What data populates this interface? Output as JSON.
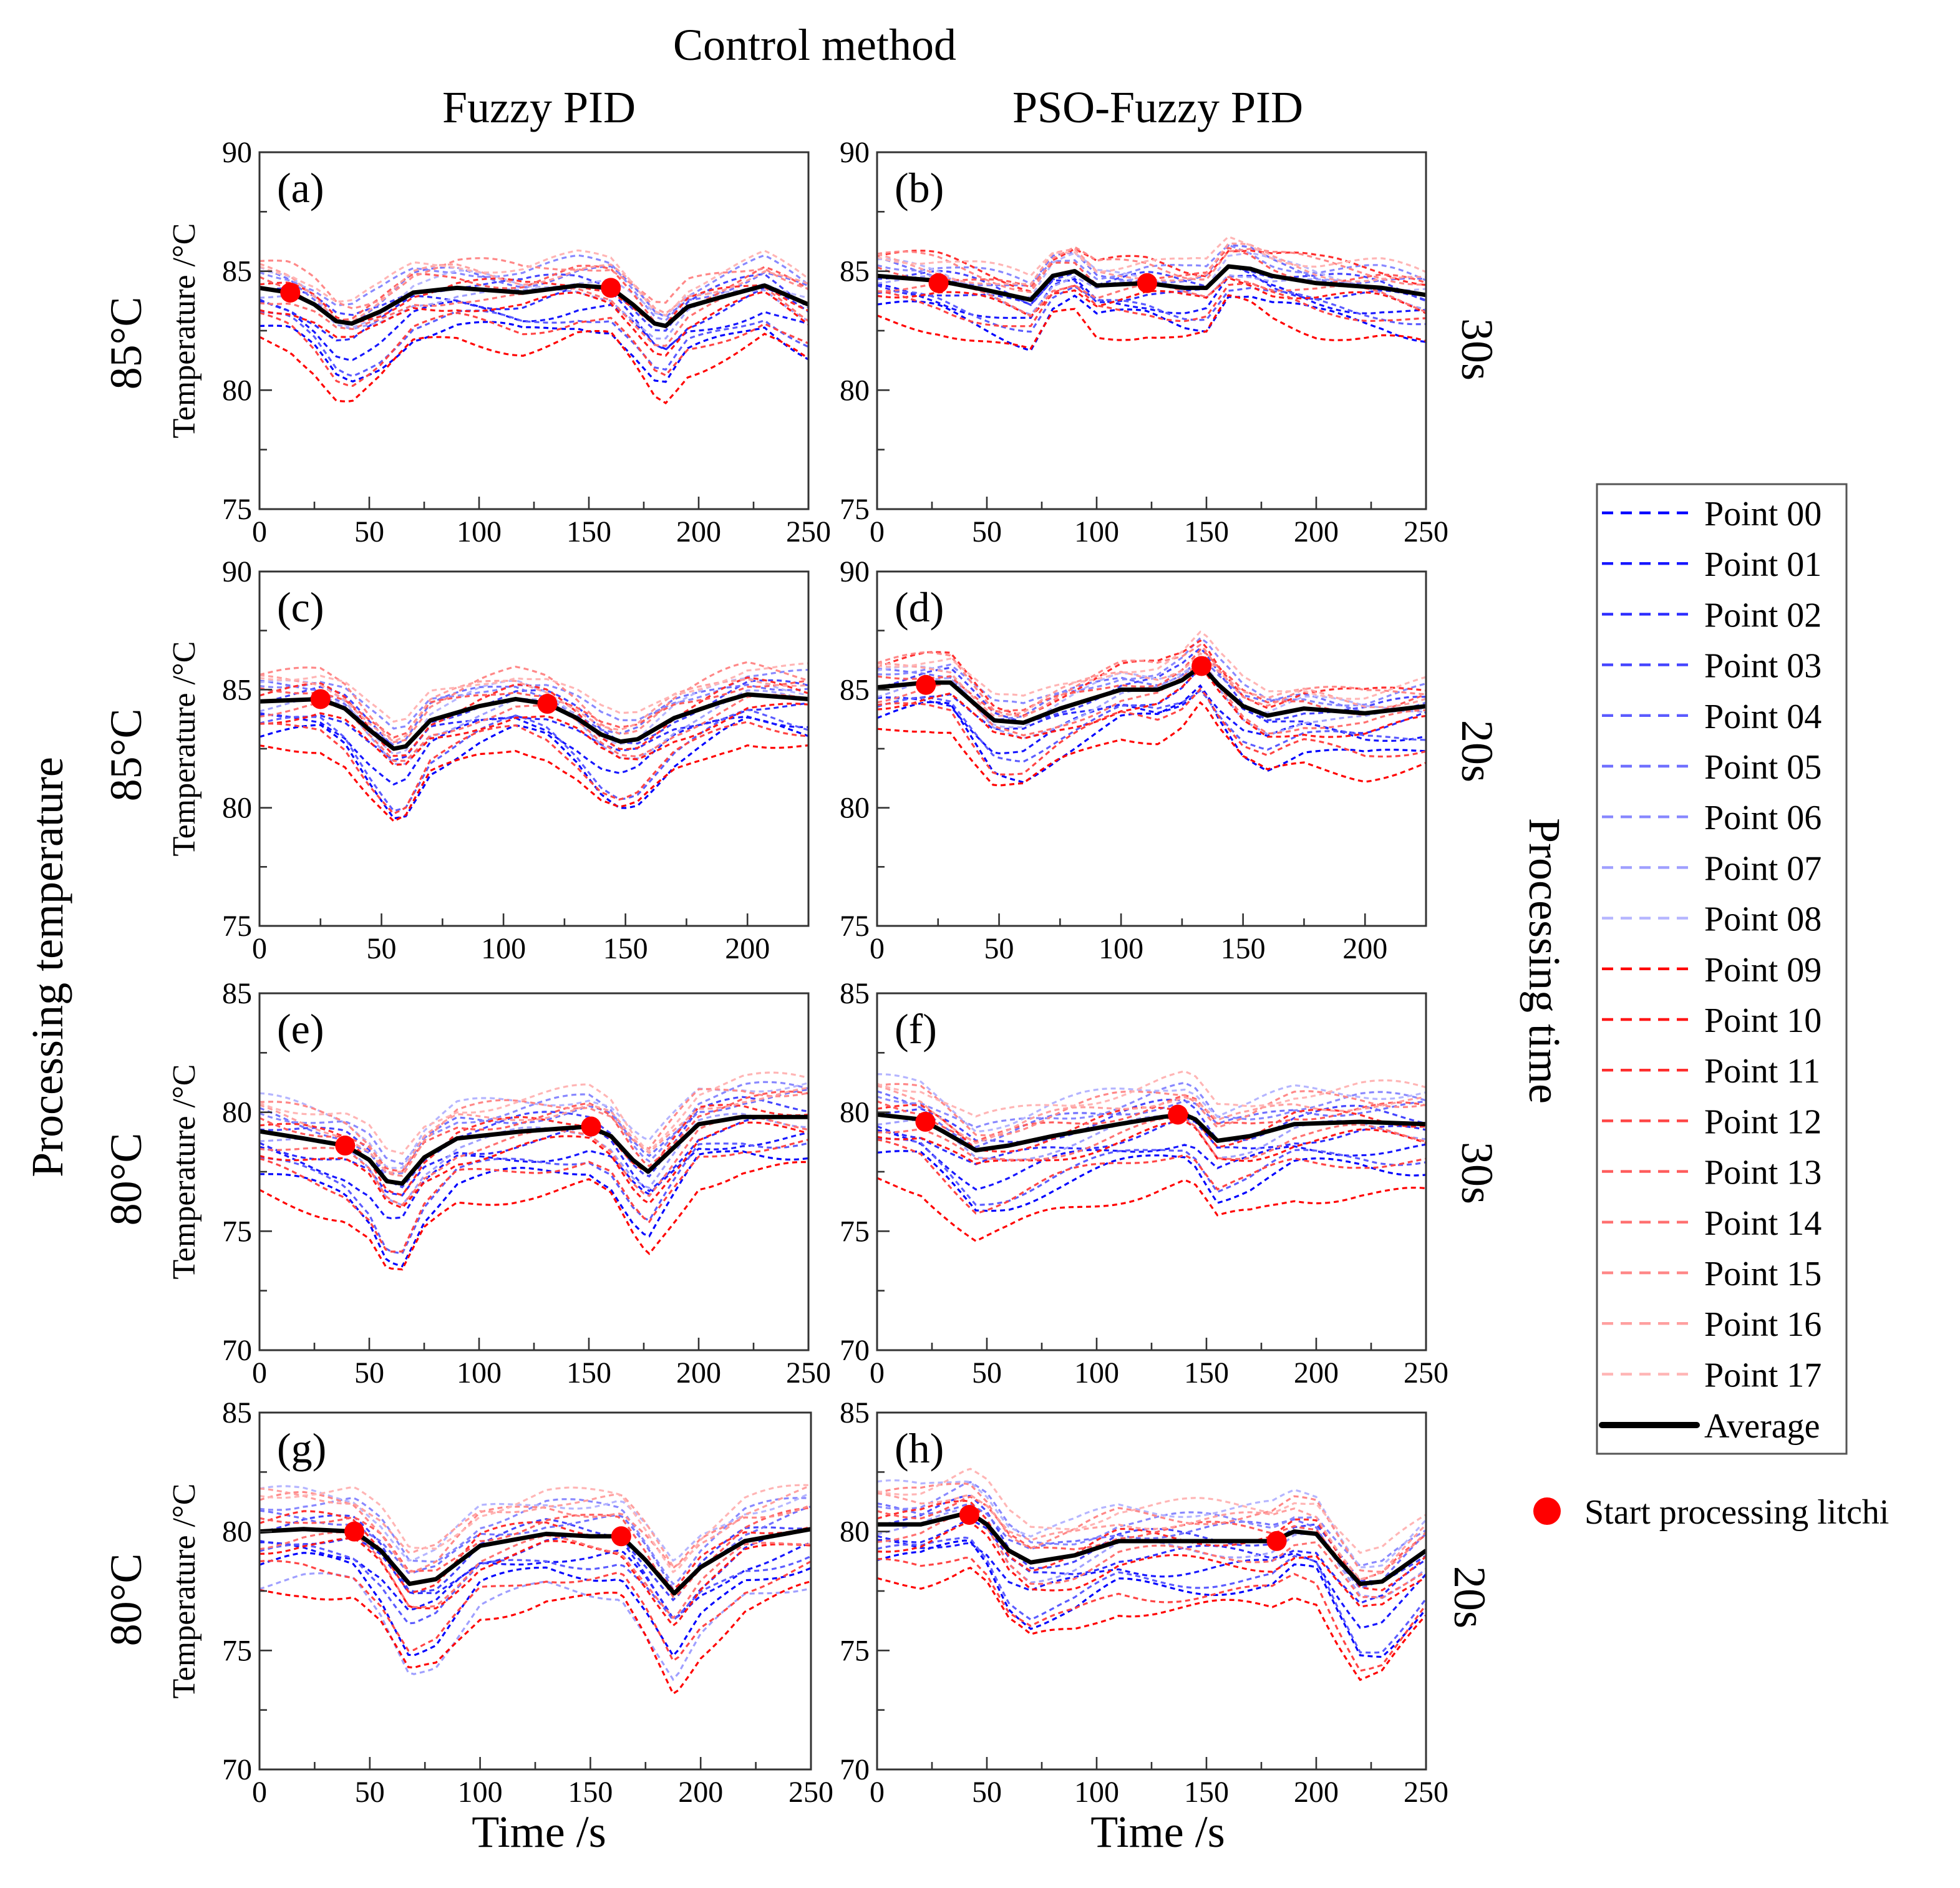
{
  "header": {
    "title": "Control method",
    "col_titles": [
      "Fuzzy PID",
      "PSO-Fuzzy PID"
    ]
  },
  "left_label": "Processing temperature",
  "right_label": "Processing time",
  "row_temperatures": [
    "85°C",
    "85°C",
    "80°C",
    "80°C"
  ],
  "row_times": [
    "30s",
    "20s",
    "30s",
    "20s"
  ],
  "xlabel": "Time /s",
  "ylabel": "Temperature /°C",
  "legend": {
    "points": [
      "Point 00",
      "Point 01",
      "Point 02",
      "Point 03",
      "Point 04",
      "Point 05",
      "Point 06",
      "Point 07",
      "Point 08",
      "Point 09",
      "Point 10",
      "Point 11",
      "Point 12",
      "Point 13",
      "Point 14",
      "Point 15",
      "Point 16",
      "Point 17"
    ],
    "average": "Average",
    "marker": "Start processing litchi"
  },
  "colors": {
    "blue": "#0000ff",
    "red": "#ff0000",
    "average": "#000000",
    "marker": "#ff0000"
  },
  "chart_data": [
    {
      "type": "line",
      "label": "(a)",
      "xlim": [
        0,
        250
      ],
      "ylim": [
        75,
        90
      ],
      "xticks": [
        0,
        50,
        100,
        150,
        200,
        250
      ],
      "yticks": [
        75,
        80,
        85,
        90
      ],
      "average": {
        "x": [
          0,
          14,
          25,
          35,
          42,
          55,
          70,
          90,
          120,
          145,
          160,
          170,
          180,
          185,
          195,
          210,
          230,
          250
        ],
        "y": [
          84.3,
          84.1,
          83.6,
          82.9,
          82.8,
          83.3,
          84.1,
          84.3,
          84.1,
          84.4,
          84.3,
          83.6,
          82.8,
          82.7,
          83.5,
          83.9,
          84.4,
          83.6
        ]
      },
      "start_markers": [
        [
          14,
          84.1
        ],
        [
          160,
          84.3
        ]
      ],
      "point_offsets": [
        -1.6,
        -0.9,
        -0.4,
        0.3,
        -1.2,
        0.6,
        0.9,
        -0.2,
        0.4,
        -2.2,
        -0.6,
        0.2,
        -1.4,
        0.5,
        -0.3,
        1.0,
        0.7,
        1.1
      ]
    },
    {
      "type": "line",
      "label": "(b)",
      "xlim": [
        0,
        250
      ],
      "ylim": [
        75,
        90
      ],
      "xticks": [
        0,
        50,
        100,
        150,
        200,
        250
      ],
      "yticks": [
        75,
        80,
        85,
        90
      ],
      "average": {
        "x": [
          0,
          28,
          50,
          70,
          80,
          90,
          100,
          123,
          140,
          150,
          160,
          170,
          180,
          200,
          230,
          250
        ],
        "y": [
          84.8,
          84.6,
          84.2,
          83.8,
          84.8,
          85.0,
          84.4,
          84.5,
          84.3,
          84.3,
          85.2,
          85.1,
          84.8,
          84.5,
          84.3,
          84.0
        ]
      },
      "start_markers": [
        [
          28,
          84.5
        ],
        [
          123,
          84.5
        ]
      ],
      "point_offsets": [
        -1.2,
        -0.7,
        -0.3,
        0.2,
        -0.9,
        0.5,
        0.7,
        -0.1,
        0.4,
        -1.8,
        -0.5,
        0.9,
        -1.0,
        0.4,
        -0.3,
        0.8,
        0.6,
        1.0
      ]
    },
    {
      "type": "line",
      "label": "(c)",
      "xlim": [
        0,
        225
      ],
      "ylim": [
        75,
        90
      ],
      "xticks": [
        0,
        50,
        100,
        150,
        200
      ],
      "yticks": [
        75,
        80,
        85,
        90
      ],
      "average": {
        "x": [
          0,
          25,
          35,
          45,
          55,
          60,
          70,
          90,
          105,
          118,
          130,
          140,
          148,
          155,
          170,
          190,
          200,
          225
        ],
        "y": [
          84.5,
          84.6,
          84.2,
          83.3,
          82.5,
          82.6,
          83.7,
          84.3,
          84.6,
          84.4,
          83.8,
          83.1,
          82.8,
          82.9,
          83.8,
          84.5,
          84.8,
          84.6
        ]
      },
      "start_markers": [
        [
          25,
          84.6
        ],
        [
          118,
          84.4
        ]
      ],
      "point_offsets": [
        -1.5,
        -0.9,
        -0.4,
        0.3,
        -1.1,
        0.6,
        0.9,
        -0.2,
        0.5,
        -2.0,
        -0.6,
        0.3,
        -1.3,
        0.6,
        -0.3,
        1.0,
        0.8,
        1.2
      ]
    },
    {
      "type": "line",
      "label": "(d)",
      "xlim": [
        0,
        225
      ],
      "ylim": [
        75,
        90
      ],
      "xticks": [
        0,
        50,
        100,
        150,
        200
      ],
      "yticks": [
        75,
        80,
        85,
        90
      ],
      "average": {
        "x": [
          0,
          20,
          30,
          40,
          48,
          60,
          75,
          100,
          115,
          125,
          133,
          140,
          150,
          160,
          175,
          200,
          225
        ],
        "y": [
          85.1,
          85.3,
          85.3,
          84.4,
          83.7,
          83.6,
          84.2,
          85.0,
          85.0,
          85.4,
          86.0,
          85.2,
          84.3,
          83.9,
          84.2,
          84.0,
          84.3
        ]
      },
      "start_markers": [
        [
          20,
          85.2
        ],
        [
          133,
          86.0
        ]
      ],
      "point_offsets": [
        -1.3,
        -0.8,
        -0.3,
        0.3,
        -1.0,
        0.5,
        0.8,
        -0.2,
        0.4,
        -1.9,
        -0.6,
        0.9,
        -1.1,
        0.5,
        -0.3,
        0.9,
        0.7,
        1.1
      ]
    },
    {
      "type": "line",
      "label": "(e)",
      "xlim": [
        0,
        250
      ],
      "ylim": [
        70,
        85
      ],
      "xticks": [
        0,
        50,
        100,
        150,
        200,
        250
      ],
      "yticks": [
        70,
        75,
        80,
        85
      ],
      "average": {
        "x": [
          0,
          20,
          39,
          50,
          58,
          65,
          75,
          90,
          120,
          150,
          160,
          170,
          177,
          185,
          200,
          220,
          250
        ],
        "y": [
          79.2,
          78.9,
          78.6,
          78.0,
          77.1,
          77.0,
          78.1,
          78.9,
          79.2,
          79.4,
          79.0,
          78.0,
          77.5,
          78.2,
          79.5,
          79.8,
          79.8
        ]
      },
      "start_markers": [
        [
          39,
          78.6
        ],
        [
          151,
          79.4
        ]
      ],
      "point_offsets": [
        -1.8,
        -1.0,
        -0.4,
        0.4,
        -1.3,
        0.7,
        1.0,
        -0.2,
        1.3,
        -2.6,
        -0.7,
        0.3,
        -1.5,
        0.6,
        -0.4,
        1.1,
        0.8,
        1.4
      ]
    },
    {
      "type": "line",
      "label": "(f)",
      "xlim": [
        0,
        250
      ],
      "ylim": [
        70,
        85
      ],
      "xticks": [
        0,
        50,
        100,
        150,
        200,
        250
      ],
      "yticks": [
        70,
        75,
        80,
        85
      ],
      "average": {
        "x": [
          0,
          20,
          30,
          45,
          60,
          80,
          110,
          130,
          140,
          145,
          155,
          170,
          190,
          220,
          250
        ],
        "y": [
          79.9,
          79.7,
          79.2,
          78.4,
          78.6,
          79.0,
          79.5,
          79.8,
          79.9,
          79.7,
          78.8,
          79.0,
          79.5,
          79.6,
          79.5
        ]
      },
      "start_markers": [
        [
          22,
          79.6
        ],
        [
          137,
          79.9
        ]
      ],
      "point_offsets": [
        -1.6,
        -1.0,
        -0.4,
        0.4,
        -1.2,
        0.7,
        1.0,
        -0.2,
        1.4,
        -2.8,
        -0.6,
        0.3,
        -1.4,
        0.6,
        -0.4,
        1.1,
        0.9,
        1.5
      ]
    },
    {
      "type": "line",
      "label": "(g)",
      "xlim": [
        0,
        250
      ],
      "ylim": [
        70,
        85
      ],
      "xticks": [
        0,
        50,
        100,
        150,
        200,
        250
      ],
      "yticks": [
        70,
        75,
        80,
        85
      ],
      "average": {
        "x": [
          0,
          20,
          43,
          55,
          68,
          80,
          100,
          130,
          150,
          164,
          175,
          188,
          200,
          220,
          250
        ],
        "y": [
          80.0,
          80.1,
          80.0,
          79.2,
          77.8,
          78.0,
          79.4,
          79.9,
          79.8,
          79.8,
          78.8,
          77.4,
          78.5,
          79.6,
          80.1
        ]
      },
      "start_markers": [
        [
          43,
          80.0
        ],
        [
          164,
          79.8
        ]
      ],
      "point_offsets": [
        -1.4,
        -0.8,
        -0.3,
        0.3,
        -1.0,
        0.6,
        1.2,
        -2.2,
        1.5,
        -2.6,
        -0.6,
        0.4,
        -1.6,
        0.6,
        -0.4,
        1.2,
        1.5,
        1.7
      ]
    },
    {
      "type": "line",
      "label": "(h)",
      "xlim": [
        0,
        250
      ],
      "ylim": [
        70,
        85
      ],
      "xticks": [
        0,
        50,
        100,
        150,
        200,
        250
      ],
      "yticks": [
        70,
        75,
        80,
        85
      ],
      "average": {
        "x": [
          0,
          20,
          42,
          50,
          60,
          70,
          90,
          110,
          140,
          180,
          190,
          200,
          210,
          220,
          230,
          250
        ],
        "y": [
          80.3,
          80.3,
          80.8,
          80.3,
          79.2,
          78.7,
          79.0,
          79.6,
          79.6,
          79.6,
          80.0,
          79.9,
          78.8,
          77.8,
          77.9,
          79.2
        ]
      },
      "start_markers": [
        [
          42,
          80.7
        ],
        [
          182,
          79.6
        ]
      ],
      "point_offsets": [
        -1.5,
        -1.0,
        -0.4,
        0.3,
        -1.2,
        0.6,
        1.0,
        -0.2,
        1.5,
        -2.4,
        -0.8,
        0.3,
        -1.8,
        0.6,
        -0.4,
        1.2,
        1.0,
        1.6
      ]
    }
  ]
}
